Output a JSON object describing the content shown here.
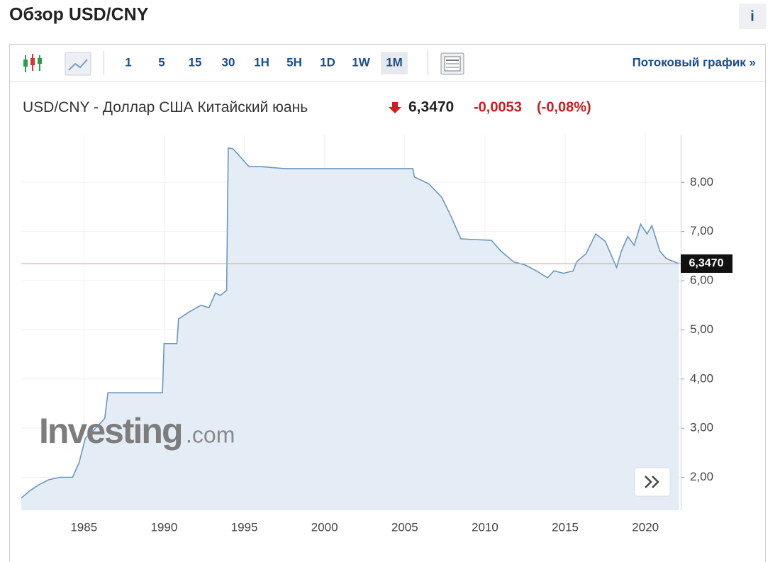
{
  "header": {
    "title": "Обзор USD/CNY",
    "info": "i"
  },
  "toolbar": {
    "intervals": [
      "1",
      "5",
      "15",
      "30",
      "1H",
      "5H",
      "1D",
      "1W",
      "1M"
    ],
    "active": "1M",
    "stream_link": "Потоковый график »"
  },
  "quote": {
    "pair": "USD/CNY",
    "name": "- Доллар США Китайский юань",
    "price": "6,3470",
    "change": "-0,0053",
    "change_pct": "(-0,08%)"
  },
  "watermark": {
    "brand": "Investing",
    "suffix": ".com"
  },
  "chart_data": {
    "type": "area",
    "x": [
      1981.1,
      1981.6,
      1982.2,
      1982.8,
      1983.5,
      1984.3,
      1984.7,
      1985.1,
      1985.6,
      1986.3,
      1986.5,
      1989.9,
      1990.0,
      1990.8,
      1990.9,
      1991.5,
      1992.3,
      1992.8,
      1993.2,
      1993.5,
      1993.9,
      1994.0,
      1994.3,
      1994.8,
      1995.3,
      1996,
      1997.5,
      2005.5,
      2005.6,
      2006.5,
      2007.3,
      2007.9,
      2008.5,
      2010.4,
      2011,
      2011.8,
      2012.5,
      2013.2,
      2013.9,
      2014.3,
      2014.9,
      2015.5,
      2015.7,
      2016.3,
      2016.9,
      2017.5,
      2018.2,
      2018.5,
      2018.9,
      2019.3,
      2019.7,
      2020.1,
      2020.4,
      2020.9,
      2021.3,
      2021.9,
      2022.1
    ],
    "series": [
      {
        "color": "#6a97c0",
        "fill": "#e4edf6",
        "values": [
          1.58,
          1.72,
          1.85,
          1.95,
          2.0,
          2.0,
          2.3,
          2.8,
          2.95,
          3.2,
          3.72,
          3.72,
          4.72,
          4.72,
          5.22,
          5.35,
          5.5,
          5.45,
          5.75,
          5.7,
          5.8,
          8.7,
          8.68,
          8.5,
          8.32,
          8.32,
          8.28,
          8.28,
          8.11,
          7.97,
          7.7,
          7.3,
          6.85,
          6.82,
          6.6,
          6.38,
          6.32,
          6.2,
          6.06,
          6.2,
          6.15,
          6.2,
          6.38,
          6.55,
          6.95,
          6.8,
          6.27,
          6.6,
          6.9,
          6.72,
          7.15,
          6.95,
          7.12,
          6.6,
          6.45,
          6.37,
          6.347
        ]
      }
    ],
    "xlim": [
      1981.1,
      2022.2
    ],
    "ylim": [
      1.33,
      8.97
    ],
    "xticks": [
      1985,
      1990,
      1995,
      2000,
      2005,
      2010,
      2015,
      2020
    ],
    "yticks": [
      {
        "value": 2,
        "label": "2,00"
      },
      {
        "value": 3,
        "label": "3,00"
      },
      {
        "value": 4,
        "label": "4,00"
      },
      {
        "value": 5,
        "label": "5,00"
      },
      {
        "value": 6,
        "label": "6,00"
      },
      {
        "value": 7,
        "label": "7,00"
      },
      {
        "value": 8,
        "label": "8,00"
      }
    ],
    "grid": true,
    "price_line": {
      "value": 6.347,
      "label": "6,3470",
      "color": "#e89a9a"
    }
  }
}
